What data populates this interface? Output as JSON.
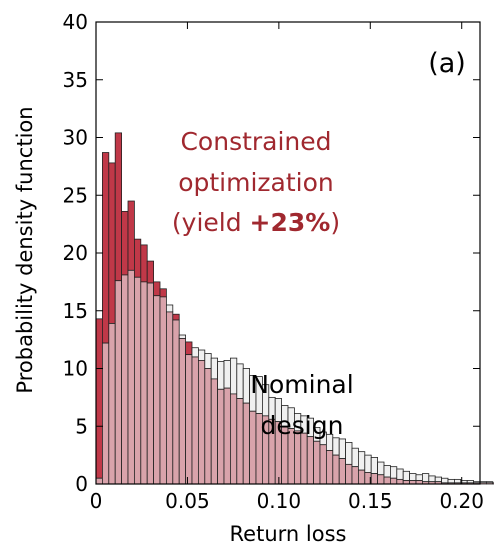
{
  "chart_data": {
    "type": "bar",
    "xlabel": "Return loss",
    "ylabel": "Probability density function",
    "xlim": [
      0,
      0.21
    ],
    "ylim": [
      0,
      40
    ],
    "xticks": [
      "0",
      "0.05",
      "0.10",
      "0.15",
      "0.20"
    ],
    "xtick_values": [
      0,
      0.05,
      0.1,
      0.15,
      0.2
    ],
    "yticks": [
      "0",
      "5",
      "10",
      "15",
      "20",
      "25",
      "30",
      "35",
      "40"
    ],
    "ytick_values": [
      0,
      5,
      10,
      15,
      20,
      25,
      30,
      35,
      40
    ],
    "bin_width": 0.0035,
    "series": [
      {
        "key": "nominal",
        "color": "#f0f0f0",
        "values": [
          0.5,
          12.2,
          13.9,
          17.6,
          18.1,
          18.5,
          17.9,
          17.5,
          17.4,
          16.3,
          16.2,
          15.5,
          14.2,
          12.9,
          11.2,
          11.8,
          11.6,
          11.3,
          10.9,
          10.6,
          10.7,
          10.9,
          10.4,
          10.0,
          9.4,
          9.3,
          8.6,
          7.5,
          7.4,
          6.8,
          6.6,
          6.1,
          5.9,
          5.7,
          4.9,
          4.5,
          4.3,
          4.0,
          3.9,
          3.6,
          3.1,
          2.8,
          2.5,
          2.3,
          1.9,
          1.6,
          1.5,
          1.3,
          1.1,
          0.9,
          0.8,
          0.9,
          0.7,
          0.6,
          0.5,
          0.4,
          0.4,
          0.3,
          0.3,
          0.2,
          0.2,
          0.2,
          0.1,
          0.1,
          0.1,
          0.1,
          0.1,
          0.1,
          0.1,
          0.1,
          0.1
        ]
      },
      {
        "key": "constrained",
        "color": "#c03848",
        "values": [
          14.3,
          28.7,
          27.8,
          30.4,
          23.6,
          24.5,
          21.2,
          20.7,
          19.3,
          17.5,
          16.9,
          14.9,
          14.7,
          12.6,
          12.3,
          11.0,
          10.7,
          10.0,
          9.1,
          8.2,
          8.3,
          7.8,
          7.4,
          7.0,
          6.3,
          6.1,
          5.9,
          5.6,
          5.4,
          5.0,
          4.8,
          4.6,
          4.4,
          4.1,
          3.7,
          3.4,
          2.9,
          2.5,
          2.2,
          1.7,
          1.5,
          1.2,
          1.0,
          0.9,
          0.8,
          0.6,
          0.5,
          0.4,
          0.3,
          0.3,
          0.3,
          0.2,
          0.2,
          0.2,
          0.1,
          0.1,
          0.1,
          0.1,
          0.1,
          0.1,
          0.1,
          0.1,
          0.1,
          0.1,
          0.1,
          0.1,
          0.1,
          0.1,
          0.1,
          0.1,
          0.1
        ]
      }
    ],
    "overlap_color": "#d9a3ab",
    "annotations": {
      "panel_label": "(a)",
      "constrained_line1": "Constrained",
      "constrained_line2": "optimization",
      "constrained_line3_prefix": "(yield ",
      "constrained_line3_bold": "+23%",
      "constrained_line3_suffix": ")",
      "nominal_line1": "Nominal",
      "nominal_line2": "design"
    }
  }
}
